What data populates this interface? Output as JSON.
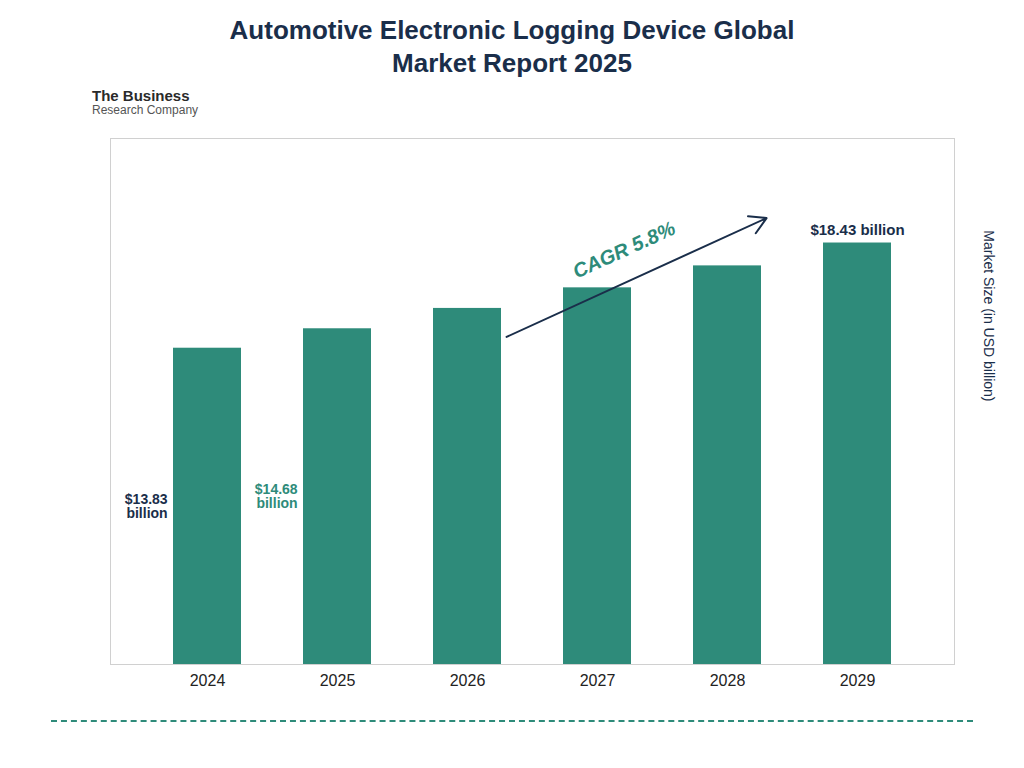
{
  "chart_data": {
    "type": "bar",
    "title": "Automotive Electronic Logging Device Global\nMarket Report 2025",
    "categories": [
      "2024",
      "2025",
      "2026",
      "2027",
      "2028",
      "2029"
    ],
    "values": [
      13.83,
      14.68,
      15.57,
      16.47,
      17.43,
      18.43
    ],
    "color": "#2E8B7A",
    "ylabel": "Market Size (in USD billion)",
    "ylim": [
      0,
      23
    ],
    "grid": false,
    "tick_labels": "x",
    "annotations": [
      {
        "text": "$13.83\nbillion",
        "category": "2024",
        "color": "#1a2e4a"
      },
      {
        "text": "$14.68\nbillion",
        "category": "2025",
        "color": "#2E8B7A"
      },
      {
        "text": "$18.43 billion",
        "category": "2029",
        "color": "#1a2e4a"
      },
      {
        "text": "CAGR 5.8%",
        "color": "#2E8B7A"
      },
      {
        "text": "The Business"
      },
      {
        "text": "Research Company"
      }
    ]
  }
}
